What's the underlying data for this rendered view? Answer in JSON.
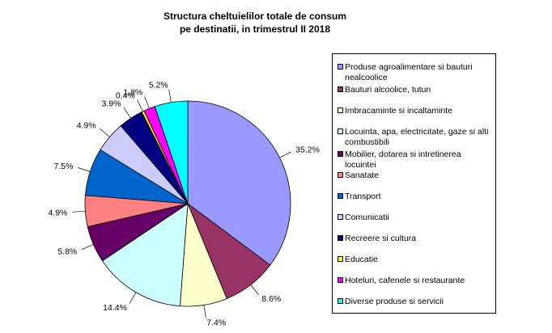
{
  "chart_data": {
    "type": "pie",
    "title": "Structura cheltuielilor totale de consum",
    "subtitle": "pe destinatii, in trimestrul II 2018",
    "values": [
      35.2,
      8.6,
      7.4,
      14.4,
      5.8,
      4.9,
      7.5,
      4.9,
      3.9,
      0.4,
      1.8,
      5.2
    ],
    "value_labels": [
      "35.2%",
      "8.6%",
      "7.4%",
      "14.4%",
      "5.8%",
      "4.9%",
      "7.5%",
      "4.9%",
      "3.9%",
      "0.4%",
      "1.8%",
      "5.2%"
    ],
    "categories": [
      "Produse agroalimentare si bauturi nealcoolice",
      "Bauturi alcoolice, tutun",
      "Imbracaminte si incaltaminte",
      "Locuinta, apa, electricitate, gaze si alti combustibili",
      "Mobilier, dotarea si intretinerea locuintei",
      "Sanatate",
      "Transport",
      "Comunicatii",
      "Recreere si cultura",
      "Educatie",
      "Hoteluri, cafenele si restaurante",
      "Diverse produse si servicii"
    ],
    "colors": [
      "#9999ff",
      "#993366",
      "#ffffcc",
      "#ccffff",
      "#660066",
      "#ff8080",
      "#0066cc",
      "#ccccff",
      "#000080",
      "#ffff00",
      "#ff00ff",
      "#00ffff"
    ],
    "start_angle_deg": 0,
    "direction": "clockwise",
    "legend_position": "right"
  }
}
